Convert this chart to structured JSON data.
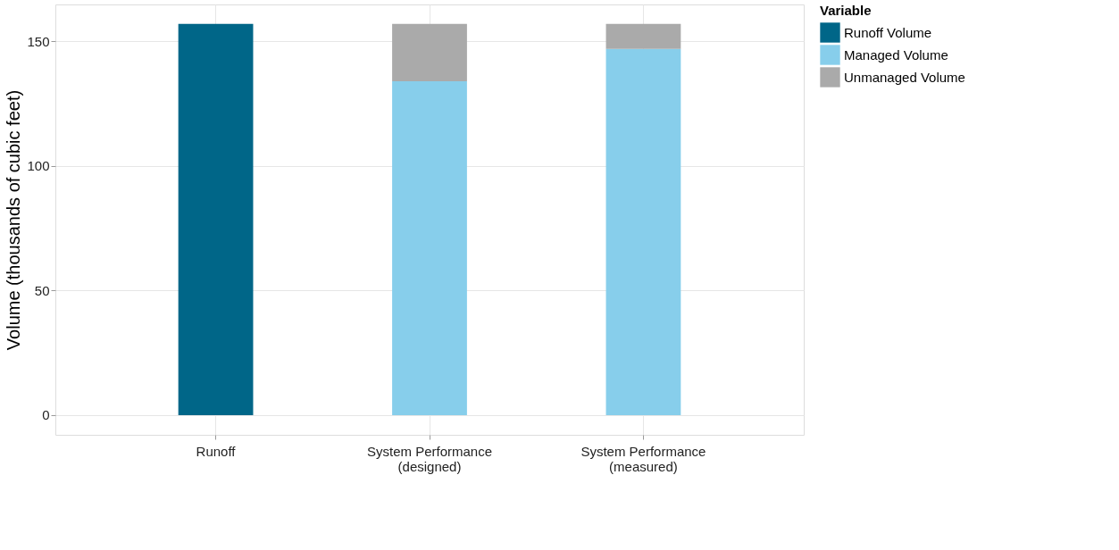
{
  "chart_data": {
    "type": "bar",
    "stacked": true,
    "ylabel": "Volume (thousands of cubic feet)",
    "legend_title": "Variable",
    "legend": "right",
    "grid": true,
    "categories": [
      "Runoff",
      "System Performance\n(designed)",
      "System Performance\n(measured)"
    ],
    "series": [
      {
        "name": "Runoff Volume",
        "color": "#006688",
        "values": [
          157,
          null,
          null
        ]
      },
      {
        "name": "Managed Volume",
        "color": "#87ceeb",
        "values": [
          null,
          134,
          147
        ]
      },
      {
        "name": "Unmanaged Volume",
        "color": "#aaaaaa",
        "values": [
          null,
          23,
          10
        ]
      }
    ],
    "ylim": [
      -7.9,
      164.8
    ],
    "yticks": [
      0,
      50,
      100,
      150
    ]
  }
}
